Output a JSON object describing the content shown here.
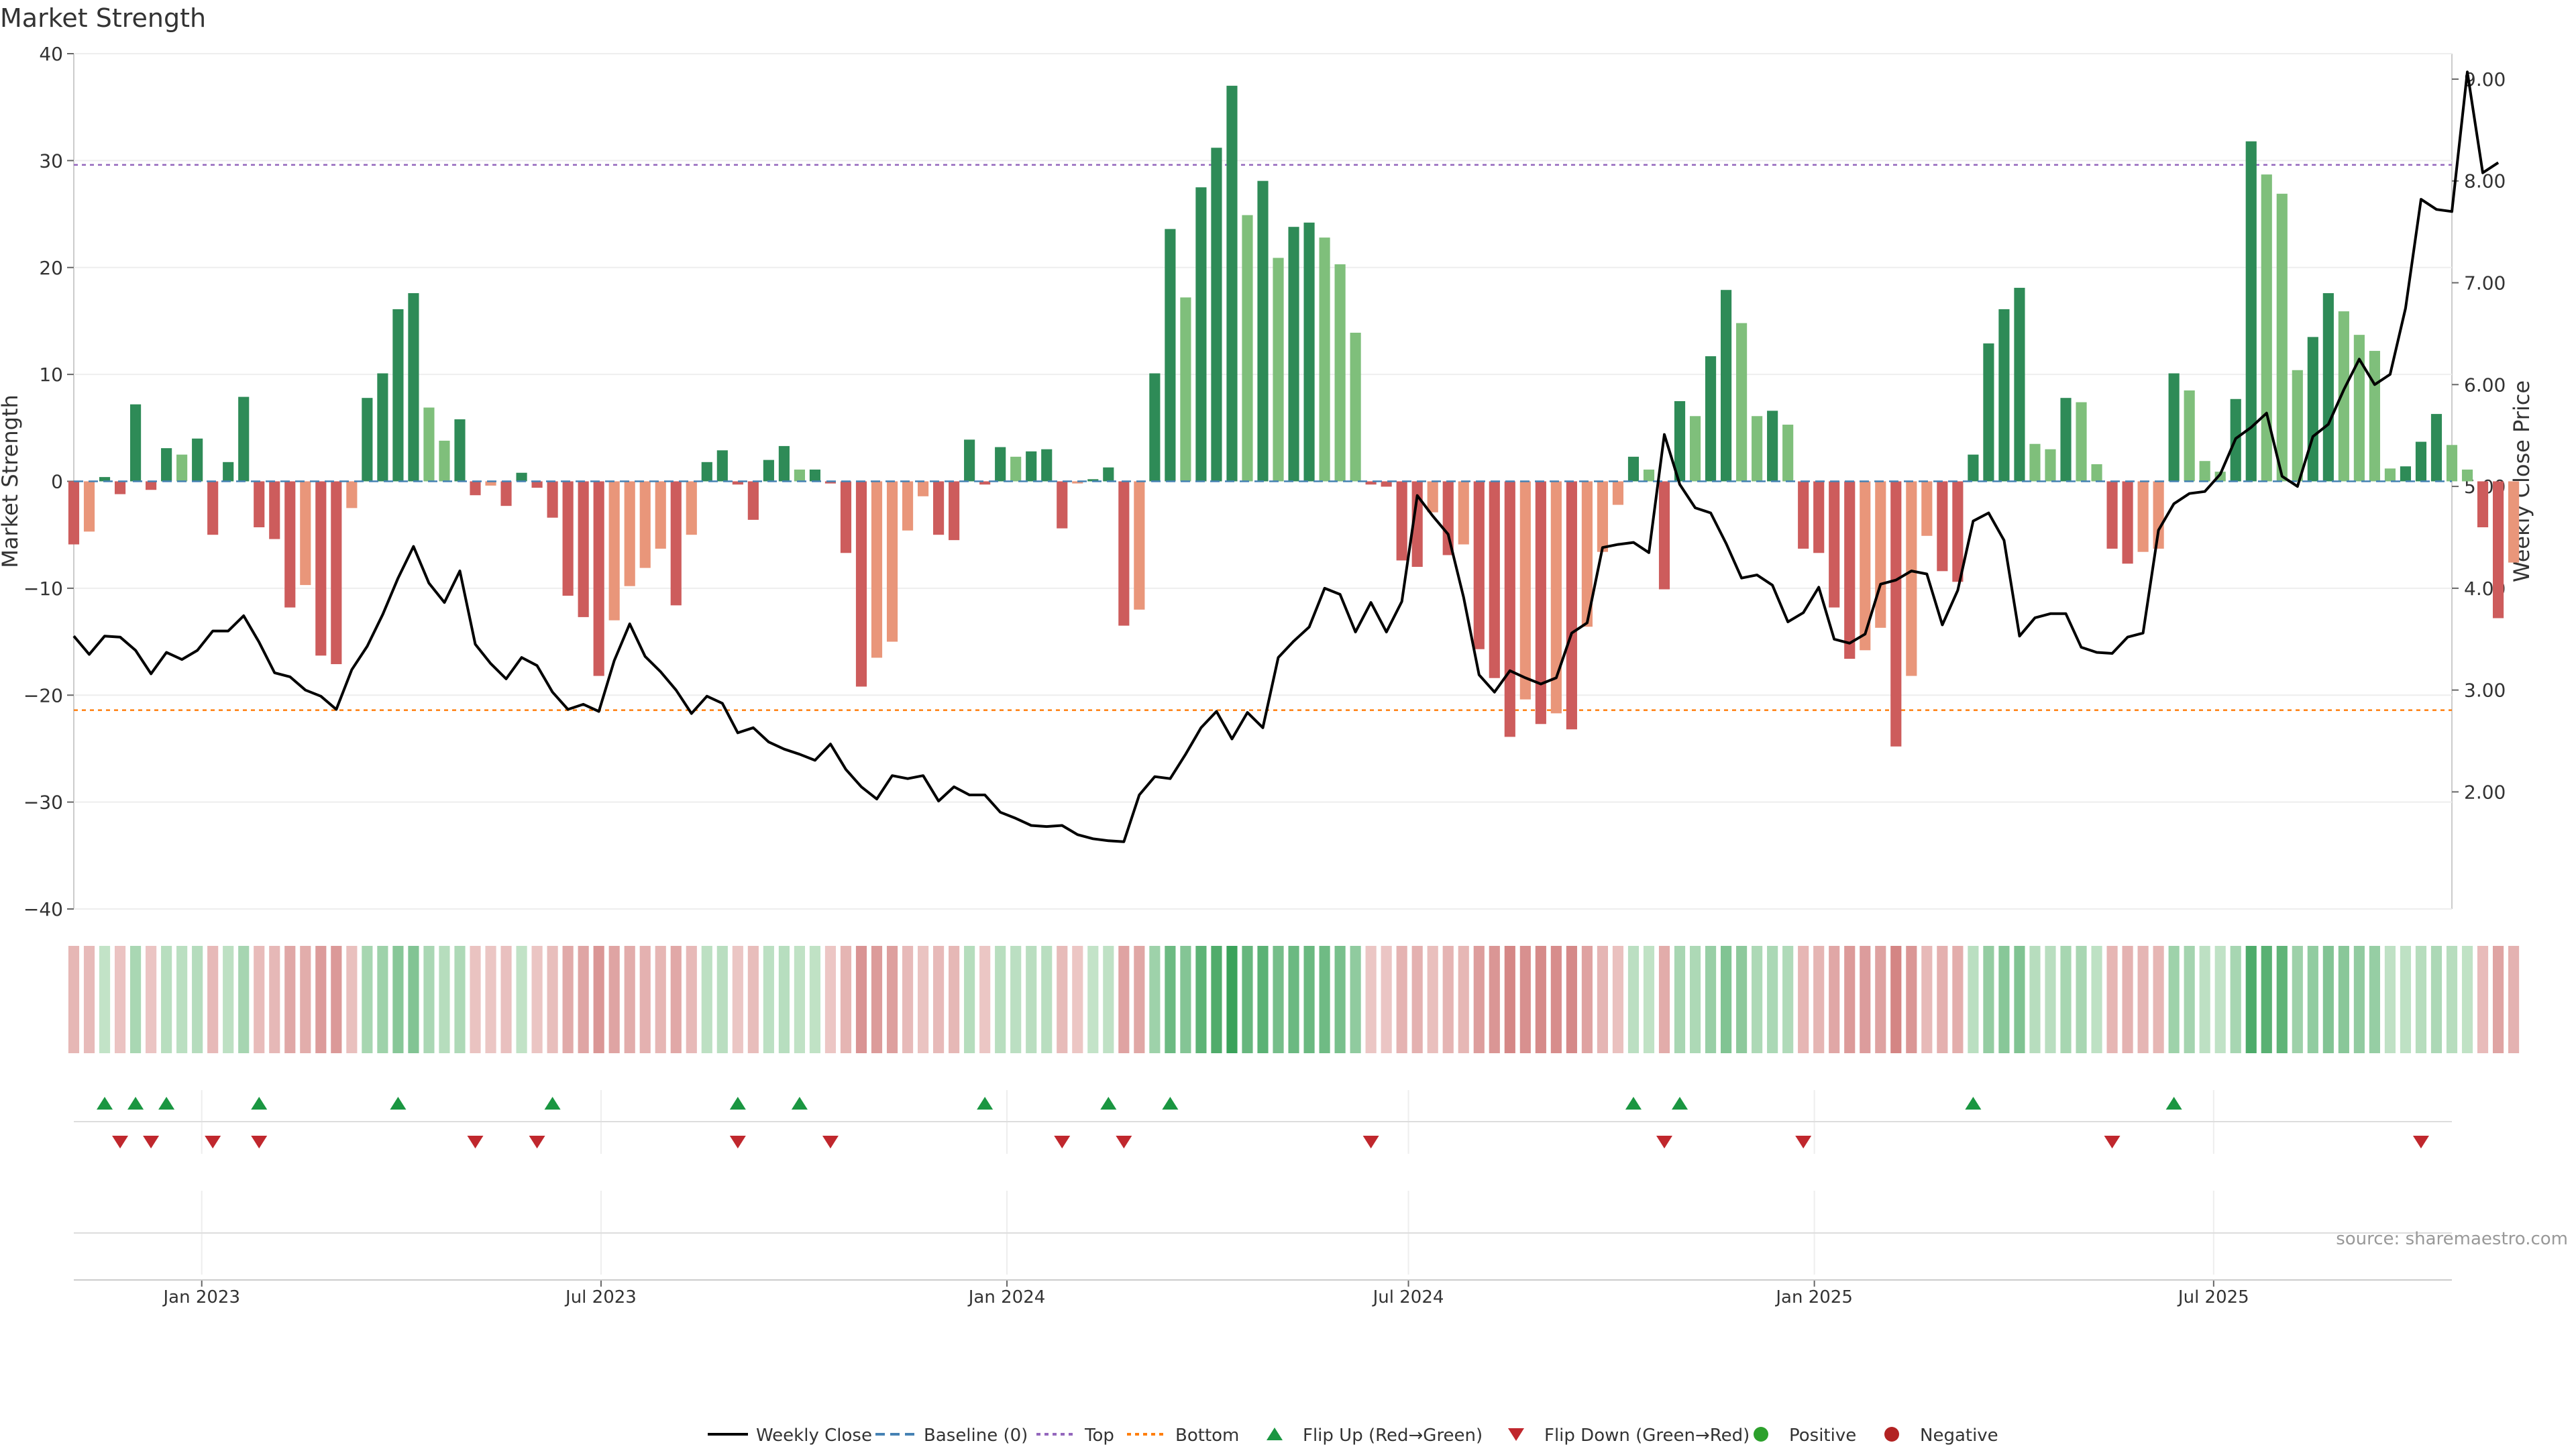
{
  "chart_data": {
    "type": "bar",
    "title": "Market Strength",
    "source": "source: sharemaestro.com",
    "ylabel": "Market Strength",
    "y2label": "Weekly Close Price",
    "ylim": [
      -40,
      40
    ],
    "y2lim": [
      0.85,
      9.25
    ],
    "yticks": [
      40,
      30,
      20,
      10,
      0,
      -10,
      -20,
      -30,
      -40
    ],
    "yticks_labels": [
      "40",
      "30",
      "20",
      "10",
      "0",
      "−10",
      "−20",
      "−30",
      "−40"
    ],
    "y2ticks": [
      9,
      8,
      7,
      6,
      5,
      4,
      3,
      2
    ],
    "y2ticks_labels": [
      "9.00",
      "8.00",
      "7.00",
      "6.00",
      "5.00",
      "4.00",
      "3.00",
      "2.00"
    ],
    "top_line": 29.6,
    "bottom_line": -21.4,
    "x_axis": {
      "start": "2022-11-04",
      "end": "2025-10-17",
      "ticks": [
        {
          "date": "2023-01-01",
          "label": "Jan 2023"
        },
        {
          "date": "2023-07-01",
          "label": "Jul 2023"
        },
        {
          "date": "2024-01-01",
          "label": "Jan 2024"
        },
        {
          "date": "2024-07-01",
          "label": "Jul 2024"
        },
        {
          "date": "2025-01-01",
          "label": "Jan 2025"
        },
        {
          "date": "2025-07-01",
          "label": "Jul 2025"
        }
      ]
    },
    "grid": true,
    "legend_position": "bottom-center",
    "legend": [
      "Weekly Close",
      "Baseline (0)",
      "Top",
      "Bottom",
      "Flip Up (Red→Green)",
      "Flip Down (Green→Red)",
      "Positive",
      "Negative"
    ],
    "colors": {
      "pos_strong": "#2e8b57",
      "pos_light": "#7fbf7b",
      "neg_strong": "#cd5c5c",
      "neg_light": "#e9967a",
      "price_line": "#000000",
      "baseline": "#4682b4",
      "top": "#9467bd",
      "bottom": "#ff7f0e",
      "flip_up": "#1a9641",
      "flip_down": "#c0272d",
      "positive": "#2ca02c",
      "negative": "#b22222"
    },
    "series": [
      {
        "name": "Market Strength",
        "start": "2022-11-04",
        "interval_days": 7,
        "values": [
          -5.9,
          -4.7,
          0.4,
          -1.2,
          7.2,
          -0.8,
          3.1,
          2.5,
          4.0,
          -5.0,
          1.8,
          7.9,
          -4.3,
          -5.4,
          -11.8,
          -9.7,
          -16.3,
          -17.1,
          -2.5,
          7.8,
          10.1,
          16.1,
          17.6,
          6.9,
          3.8,
          5.8,
          -1.3,
          -0.4,
          -2.3,
          0.8,
          -0.6,
          -3.4,
          -10.7,
          -12.7,
          -18.2,
          -13.0,
          -9.8,
          -8.1,
          -6.3,
          -11.6,
          -5.0,
          1.8,
          2.9,
          -0.3,
          -3.6,
          2.0,
          3.3,
          1.1,
          1.1,
          -0.2,
          -6.7,
          -19.2,
          -16.5,
          -15.0,
          -4.6,
          -1.4,
          -5.0,
          -5.5,
          3.9,
          -0.3,
          3.2,
          2.3,
          2.8,
          3.0,
          -4.4,
          -0.2,
          0.2,
          1.3,
          -13.5,
          -12.0,
          10.1,
          23.6,
          17.2,
          27.5,
          31.2,
          37.0,
          24.9,
          28.1,
          20.9,
          23.8,
          24.2,
          22.8,
          20.3,
          13.9,
          -0.3,
          -0.5,
          -7.4,
          -8.0,
          -2.9,
          -6.9,
          -5.9,
          -15.7,
          -18.4,
          -23.9,
          -20.4,
          -22.7,
          -21.7,
          -23.2,
          -13.6,
          -6.6,
          -2.2,
          2.3,
          1.1,
          -10.1,
          7.5,
          6.1,
          11.7,
          17.9,
          14.8,
          6.1,
          6.6,
          5.3,
          -6.3,
          -6.7,
          -11.8,
          -16.6,
          -15.8,
          -13.7,
          -24.8,
          -18.2,
          -5.1,
          -8.4,
          -9.4,
          2.5,
          12.9,
          16.1,
          18.1,
          3.5,
          3.0,
          7.8,
          7.4,
          1.6,
          -6.3,
          -7.7,
          -6.6,
          -6.3,
          10.1,
          8.5,
          1.9,
          0.9,
          7.7,
          31.8,
          28.7,
          26.9,
          10.4,
          13.5,
          17.6,
          15.9,
          13.7,
          12.2,
          1.2,
          1.4,
          3.7,
          6.3,
          3.4,
          1.1,
          -4.3,
          -12.8,
          -7.6
        ]
      },
      {
        "name": "Weekly Close",
        "start": "2022-11-04",
        "interval_days": 7,
        "values": [
          3.53,
          3.35,
          3.53,
          3.52,
          3.39,
          3.16,
          3.37,
          3.3,
          3.39,
          3.58,
          3.58,
          3.73,
          3.47,
          3.17,
          3.13,
          3.0,
          2.94,
          2.81,
          3.2,
          3.43,
          3.74,
          4.1,
          4.41,
          4.05,
          3.86,
          4.17,
          3.45,
          3.26,
          3.11,
          3.32,
          3.24,
          2.98,
          2.81,
          2.86,
          2.79,
          3.29,
          3.65,
          3.33,
          3.18,
          3.0,
          2.77,
          2.94,
          2.87,
          2.58,
          2.63,
          2.49,
          2.42,
          2.37,
          2.31,
          2.47,
          2.22,
          2.05,
          1.93,
          2.16,
          2.13,
          2.16,
          1.91,
          2.05,
          1.97,
          1.97,
          1.8,
          1.74,
          1.67,
          1.66,
          1.67,
          1.58,
          1.54,
          1.52,
          1.51,
          1.97,
          2.15,
          2.13,
          2.37,
          2.63,
          2.79,
          2.52,
          2.78,
          2.63,
          3.32,
          3.48,
          3.62,
          4.0,
          3.94,
          3.57,
          3.86,
          3.57,
          3.87,
          4.91,
          4.71,
          4.53,
          3.91,
          3.15,
          2.98,
          3.19,
          3.12,
          3.06,
          3.12,
          3.56,
          3.66,
          4.4,
          4.43,
          4.45,
          4.35,
          5.51,
          5.02,
          4.79,
          4.74,
          4.44,
          4.1,
          4.13,
          4.03,
          3.67,
          3.76,
          4.01,
          3.5,
          3.46,
          3.55,
          4.04,
          4.08,
          4.17,
          4.14,
          3.64,
          3.98,
          4.66,
          4.74,
          4.47,
          3.53,
          3.71,
          3.75,
          3.75,
          3.42,
          3.37,
          3.36,
          3.52,
          3.56,
          4.57,
          4.83,
          4.93,
          4.95,
          5.12,
          5.47,
          5.58,
          5.72,
          5.1,
          5.0,
          5.49,
          5.61,
          5.95,
          6.25,
          6.0,
          6.1,
          6.75,
          7.82,
          7.72,
          7.7,
          9.07,
          8.08,
          8.18
        ]
      }
    ],
    "flip_up_dates": [
      "2022-11-18",
      "2022-12-02",
      "2022-12-16",
      "2023-01-27",
      "2023-03-31",
      "2023-06-09",
      "2023-09-01",
      "2023-09-29",
      "2023-12-22",
      "2024-02-16",
      "2024-03-15",
      "2024-10-11",
      "2024-11-01",
      "2025-03-14",
      "2025-06-13"
    ],
    "flip_down_dates": [
      "2022-11-25",
      "2022-12-09",
      "2023-01-06",
      "2023-01-27",
      "2023-05-05",
      "2023-06-02",
      "2023-09-01",
      "2023-10-13",
      "2024-01-26",
      "2024-02-23",
      "2024-06-14",
      "2024-10-25",
      "2024-12-27",
      "2025-05-16",
      "2025-10-03"
    ]
  }
}
